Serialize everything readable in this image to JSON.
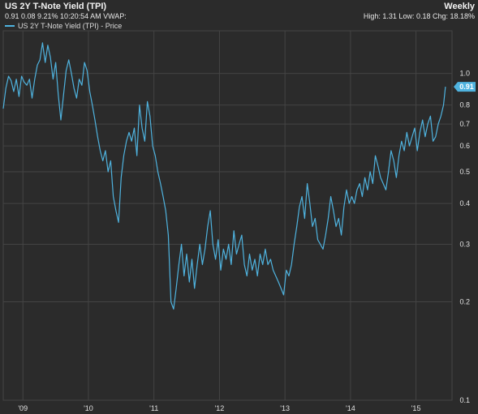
{
  "header": {
    "title": "US 2Y T-Note Yield (TPI)",
    "subtitle": "0.91 0.08 9.21% 10:20:54 AM VWAP:",
    "interval": "Weekly",
    "stats": "High: 1.31 Low: 0.18 Chg: 18.18%"
  },
  "legend": {
    "label": "US 2Y T-Note Yield (TPI) - Price"
  },
  "colors": {
    "background": "#2b2b2b",
    "plot_background": "#2b2b2b",
    "grid": "#444444",
    "line": "#4fb3df",
    "badge": "#4fb3df"
  },
  "chart_data": {
    "type": "line",
    "title": "US 2Y T-Note Yield (TPI)",
    "y_scale": "log",
    "ylim": [
      0.1,
      1.35
    ],
    "xlim": [
      2008.7,
      2015.55
    ],
    "x_ticks": [
      {
        "value": 2009.0,
        "label": "'09"
      },
      {
        "value": 2010.0,
        "label": "'10"
      },
      {
        "value": 2011.0,
        "label": "'11"
      },
      {
        "value": 2012.0,
        "label": "'12"
      },
      {
        "value": 2013.0,
        "label": "'13"
      },
      {
        "value": 2014.0,
        "label": "'14"
      },
      {
        "value": 2015.0,
        "label": "'15"
      }
    ],
    "y_ticks": [
      {
        "value": 1.0,
        "label": "1.0"
      },
      {
        "value": 0.8,
        "label": "0.8"
      },
      {
        "value": 0.7,
        "label": "0.7"
      },
      {
        "value": 0.6,
        "label": "0.6"
      },
      {
        "value": 0.5,
        "label": "0.5"
      },
      {
        "value": 0.4,
        "label": "0.4"
      },
      {
        "value": 0.3,
        "label": "0.3"
      },
      {
        "value": 0.2,
        "label": "0.2"
      },
      {
        "value": 0.1,
        "label": "0.1"
      }
    ],
    "last_value_label": "0.91",
    "last_value": 0.91,
    "series": [
      {
        "name": "US 2Y T-Note Yield (TPI) - Price",
        "points": [
          [
            2008.7,
            0.78
          ],
          [
            2008.74,
            0.9
          ],
          [
            2008.78,
            0.98
          ],
          [
            2008.82,
            0.95
          ],
          [
            2008.86,
            0.88
          ],
          [
            2008.9,
            0.96
          ],
          [
            2008.94,
            0.85
          ],
          [
            2008.98,
            0.98
          ],
          [
            2009.02,
            0.94
          ],
          [
            2009.06,
            0.92
          ],
          [
            2009.1,
            0.96
          ],
          [
            2009.14,
            0.84
          ],
          [
            2009.18,
            0.96
          ],
          [
            2009.22,
            1.06
          ],
          [
            2009.26,
            1.1
          ],
          [
            2009.3,
            1.24
          ],
          [
            2009.34,
            1.08
          ],
          [
            2009.38,
            1.22
          ],
          [
            2009.42,
            1.12
          ],
          [
            2009.46,
            0.96
          ],
          [
            2009.5,
            1.08
          ],
          [
            2009.54,
            0.86
          ],
          [
            2009.58,
            0.72
          ],
          [
            2009.62,
            0.86
          ],
          [
            2009.66,
            1.02
          ],
          [
            2009.7,
            1.1
          ],
          [
            2009.74,
            1.0
          ],
          [
            2009.78,
            0.9
          ],
          [
            2009.82,
            0.84
          ],
          [
            2009.86,
            0.96
          ],
          [
            2009.9,
            0.92
          ],
          [
            2009.94,
            1.08
          ],
          [
            2009.98,
            1.02
          ],
          [
            2010.02,
            0.88
          ],
          [
            2010.06,
            0.8
          ],
          [
            2010.1,
            0.72
          ],
          [
            2010.14,
            0.64
          ],
          [
            2010.18,
            0.58
          ],
          [
            2010.22,
            0.54
          ],
          [
            2010.26,
            0.58
          ],
          [
            2010.3,
            0.5
          ],
          [
            2010.34,
            0.54
          ],
          [
            2010.38,
            0.42
          ],
          [
            2010.42,
            0.38
          ],
          [
            2010.46,
            0.35
          ],
          [
            2010.5,
            0.48
          ],
          [
            2010.54,
            0.56
          ],
          [
            2010.58,
            0.62
          ],
          [
            2010.62,
            0.66
          ],
          [
            2010.66,
            0.62
          ],
          [
            2010.7,
            0.68
          ],
          [
            2010.74,
            0.56
          ],
          [
            2010.78,
            0.8
          ],
          [
            2010.82,
            0.68
          ],
          [
            2010.86,
            0.62
          ],
          [
            2010.9,
            0.82
          ],
          [
            2010.94,
            0.74
          ],
          [
            2010.98,
            0.6
          ],
          [
            2011.02,
            0.56
          ],
          [
            2011.06,
            0.5
          ],
          [
            2011.1,
            0.46
          ],
          [
            2011.14,
            0.42
          ],
          [
            2011.18,
            0.38
          ],
          [
            2011.22,
            0.32
          ],
          [
            2011.26,
            0.2
          ],
          [
            2011.3,
            0.19
          ],
          [
            2011.34,
            0.22
          ],
          [
            2011.38,
            0.26
          ],
          [
            2011.42,
            0.3
          ],
          [
            2011.46,
            0.24
          ],
          [
            2011.5,
            0.28
          ],
          [
            2011.54,
            0.23
          ],
          [
            2011.58,
            0.27
          ],
          [
            2011.62,
            0.22
          ],
          [
            2011.66,
            0.26
          ],
          [
            2011.7,
            0.3
          ],
          [
            2011.74,
            0.26
          ],
          [
            2011.78,
            0.29
          ],
          [
            2011.82,
            0.34
          ],
          [
            2011.86,
            0.38
          ],
          [
            2011.9,
            0.3
          ],
          [
            2011.94,
            0.27
          ],
          [
            2011.98,
            0.31
          ],
          [
            2012.02,
            0.25
          ],
          [
            2012.06,
            0.29
          ],
          [
            2012.1,
            0.27
          ],
          [
            2012.14,
            0.3
          ],
          [
            2012.18,
            0.26
          ],
          [
            2012.22,
            0.33
          ],
          [
            2012.26,
            0.28
          ],
          [
            2012.3,
            0.3
          ],
          [
            2012.34,
            0.32
          ],
          [
            2012.38,
            0.26
          ],
          [
            2012.42,
            0.24
          ],
          [
            2012.46,
            0.28
          ],
          [
            2012.5,
            0.25
          ],
          [
            2012.54,
            0.27
          ],
          [
            2012.58,
            0.24
          ],
          [
            2012.62,
            0.28
          ],
          [
            2012.66,
            0.26
          ],
          [
            2012.7,
            0.29
          ],
          [
            2012.74,
            0.26
          ],
          [
            2012.78,
            0.27
          ],
          [
            2012.82,
            0.25
          ],
          [
            2012.86,
            0.24
          ],
          [
            2012.9,
            0.23
          ],
          [
            2012.94,
            0.22
          ],
          [
            2012.98,
            0.21
          ],
          [
            2013.02,
            0.25
          ],
          [
            2013.06,
            0.24
          ],
          [
            2013.1,
            0.26
          ],
          [
            2013.14,
            0.3
          ],
          [
            2013.18,
            0.34
          ],
          [
            2013.22,
            0.39
          ],
          [
            2013.26,
            0.42
          ],
          [
            2013.3,
            0.36
          ],
          [
            2013.34,
            0.46
          ],
          [
            2013.38,
            0.4
          ],
          [
            2013.42,
            0.34
          ],
          [
            2013.46,
            0.36
          ],
          [
            2013.5,
            0.31
          ],
          [
            2013.54,
            0.3
          ],
          [
            2013.58,
            0.29
          ],
          [
            2013.62,
            0.32
          ],
          [
            2013.66,
            0.36
          ],
          [
            2013.7,
            0.42
          ],
          [
            2013.74,
            0.38
          ],
          [
            2013.78,
            0.34
          ],
          [
            2013.82,
            0.36
          ],
          [
            2013.86,
            0.32
          ],
          [
            2013.9,
            0.39
          ],
          [
            2013.94,
            0.44
          ],
          [
            2013.98,
            0.4
          ],
          [
            2014.02,
            0.42
          ],
          [
            2014.06,
            0.4
          ],
          [
            2014.1,
            0.44
          ],
          [
            2014.14,
            0.46
          ],
          [
            2014.18,
            0.42
          ],
          [
            2014.22,
            0.48
          ],
          [
            2014.26,
            0.44
          ],
          [
            2014.3,
            0.5
          ],
          [
            2014.34,
            0.46
          ],
          [
            2014.38,
            0.56
          ],
          [
            2014.42,
            0.52
          ],
          [
            2014.46,
            0.48
          ],
          [
            2014.5,
            0.46
          ],
          [
            2014.54,
            0.44
          ],
          [
            2014.58,
            0.5
          ],
          [
            2014.62,
            0.58
          ],
          [
            2014.66,
            0.54
          ],
          [
            2014.7,
            0.48
          ],
          [
            2014.74,
            0.56
          ],
          [
            2014.78,
            0.62
          ],
          [
            2014.82,
            0.58
          ],
          [
            2014.86,
            0.66
          ],
          [
            2014.9,
            0.6
          ],
          [
            2014.94,
            0.64
          ],
          [
            2014.98,
            0.68
          ],
          [
            2015.02,
            0.58
          ],
          [
            2015.06,
            0.66
          ],
          [
            2015.1,
            0.72
          ],
          [
            2015.14,
            0.64
          ],
          [
            2015.18,
            0.7
          ],
          [
            2015.22,
            0.74
          ],
          [
            2015.26,
            0.62
          ],
          [
            2015.3,
            0.64
          ],
          [
            2015.34,
            0.7
          ],
          [
            2015.38,
            0.74
          ],
          [
            2015.42,
            0.8
          ],
          [
            2015.45,
            0.91
          ]
        ]
      }
    ]
  }
}
